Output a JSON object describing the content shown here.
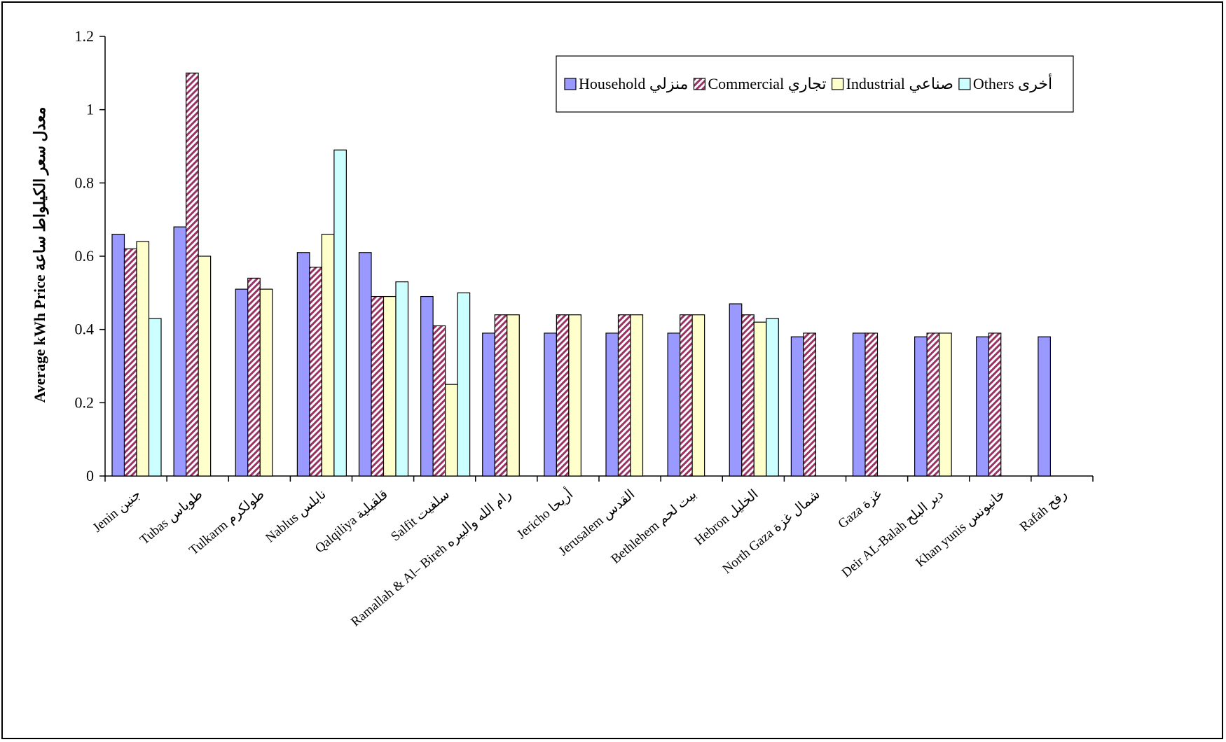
{
  "chart_data": {
    "type": "bar",
    "ylabel": "Average kWh Price  معدل سعر الكيلواط ساعة",
    "ylim": [
      0,
      1.2
    ],
    "yticks": [
      "0",
      "0.2",
      "0.4",
      "0.6",
      "0.8",
      "1",
      "1.2"
    ],
    "legend_position": "top-right",
    "grid": false,
    "categories": [
      "Jenin جنين",
      "Tubas  طوباس",
      "Tulkarm طولكرم",
      "Nablus نابلس",
      "Qalqiliya  قلقيلية",
      "Salfit سلفيت",
      "Ramallah & Al– Bireh رام الله والبيره",
      "Jericho  أريحا",
      "Jerusalem  القدس",
      "Bethlehem بيت لحم",
      "Hebron الخليل",
      "North Gaza شمال غزة",
      "Gaza غزة",
      "Deir AL-Balah دير البلح",
      "Khan yunis خانيونس",
      "Rafah رفح"
    ],
    "series": [
      {
        "name": "Household منزلي",
        "color": "#9999ff",
        "values": [
          0.66,
          0.68,
          0.51,
          0.61,
          0.61,
          0.49,
          0.39,
          0.39,
          0.39,
          0.39,
          0.47,
          0.38,
          0.39,
          0.38,
          0.38,
          0.38
        ]
      },
      {
        "name": "Commercial تجاري",
        "color": "#993366",
        "values": [
          0.62,
          1.1,
          0.54,
          0.57,
          0.49,
          0.41,
          0.44,
          0.44,
          0.44,
          0.44,
          0.44,
          0.39,
          0.39,
          0.39,
          0.39,
          null
        ]
      },
      {
        "name": "Industrial صناعي",
        "color": "#ffffcc",
        "values": [
          0.64,
          0.6,
          0.51,
          0.66,
          0.49,
          0.25,
          0.44,
          0.44,
          0.44,
          0.44,
          0.42,
          null,
          null,
          0.39,
          null,
          null
        ]
      },
      {
        "name": "Others أخرى",
        "color": "#ccffff",
        "values": [
          0.43,
          null,
          null,
          0.89,
          0.53,
          0.5,
          null,
          null,
          null,
          null,
          0.43,
          null,
          null,
          null,
          null,
          null
        ]
      }
    ]
  }
}
